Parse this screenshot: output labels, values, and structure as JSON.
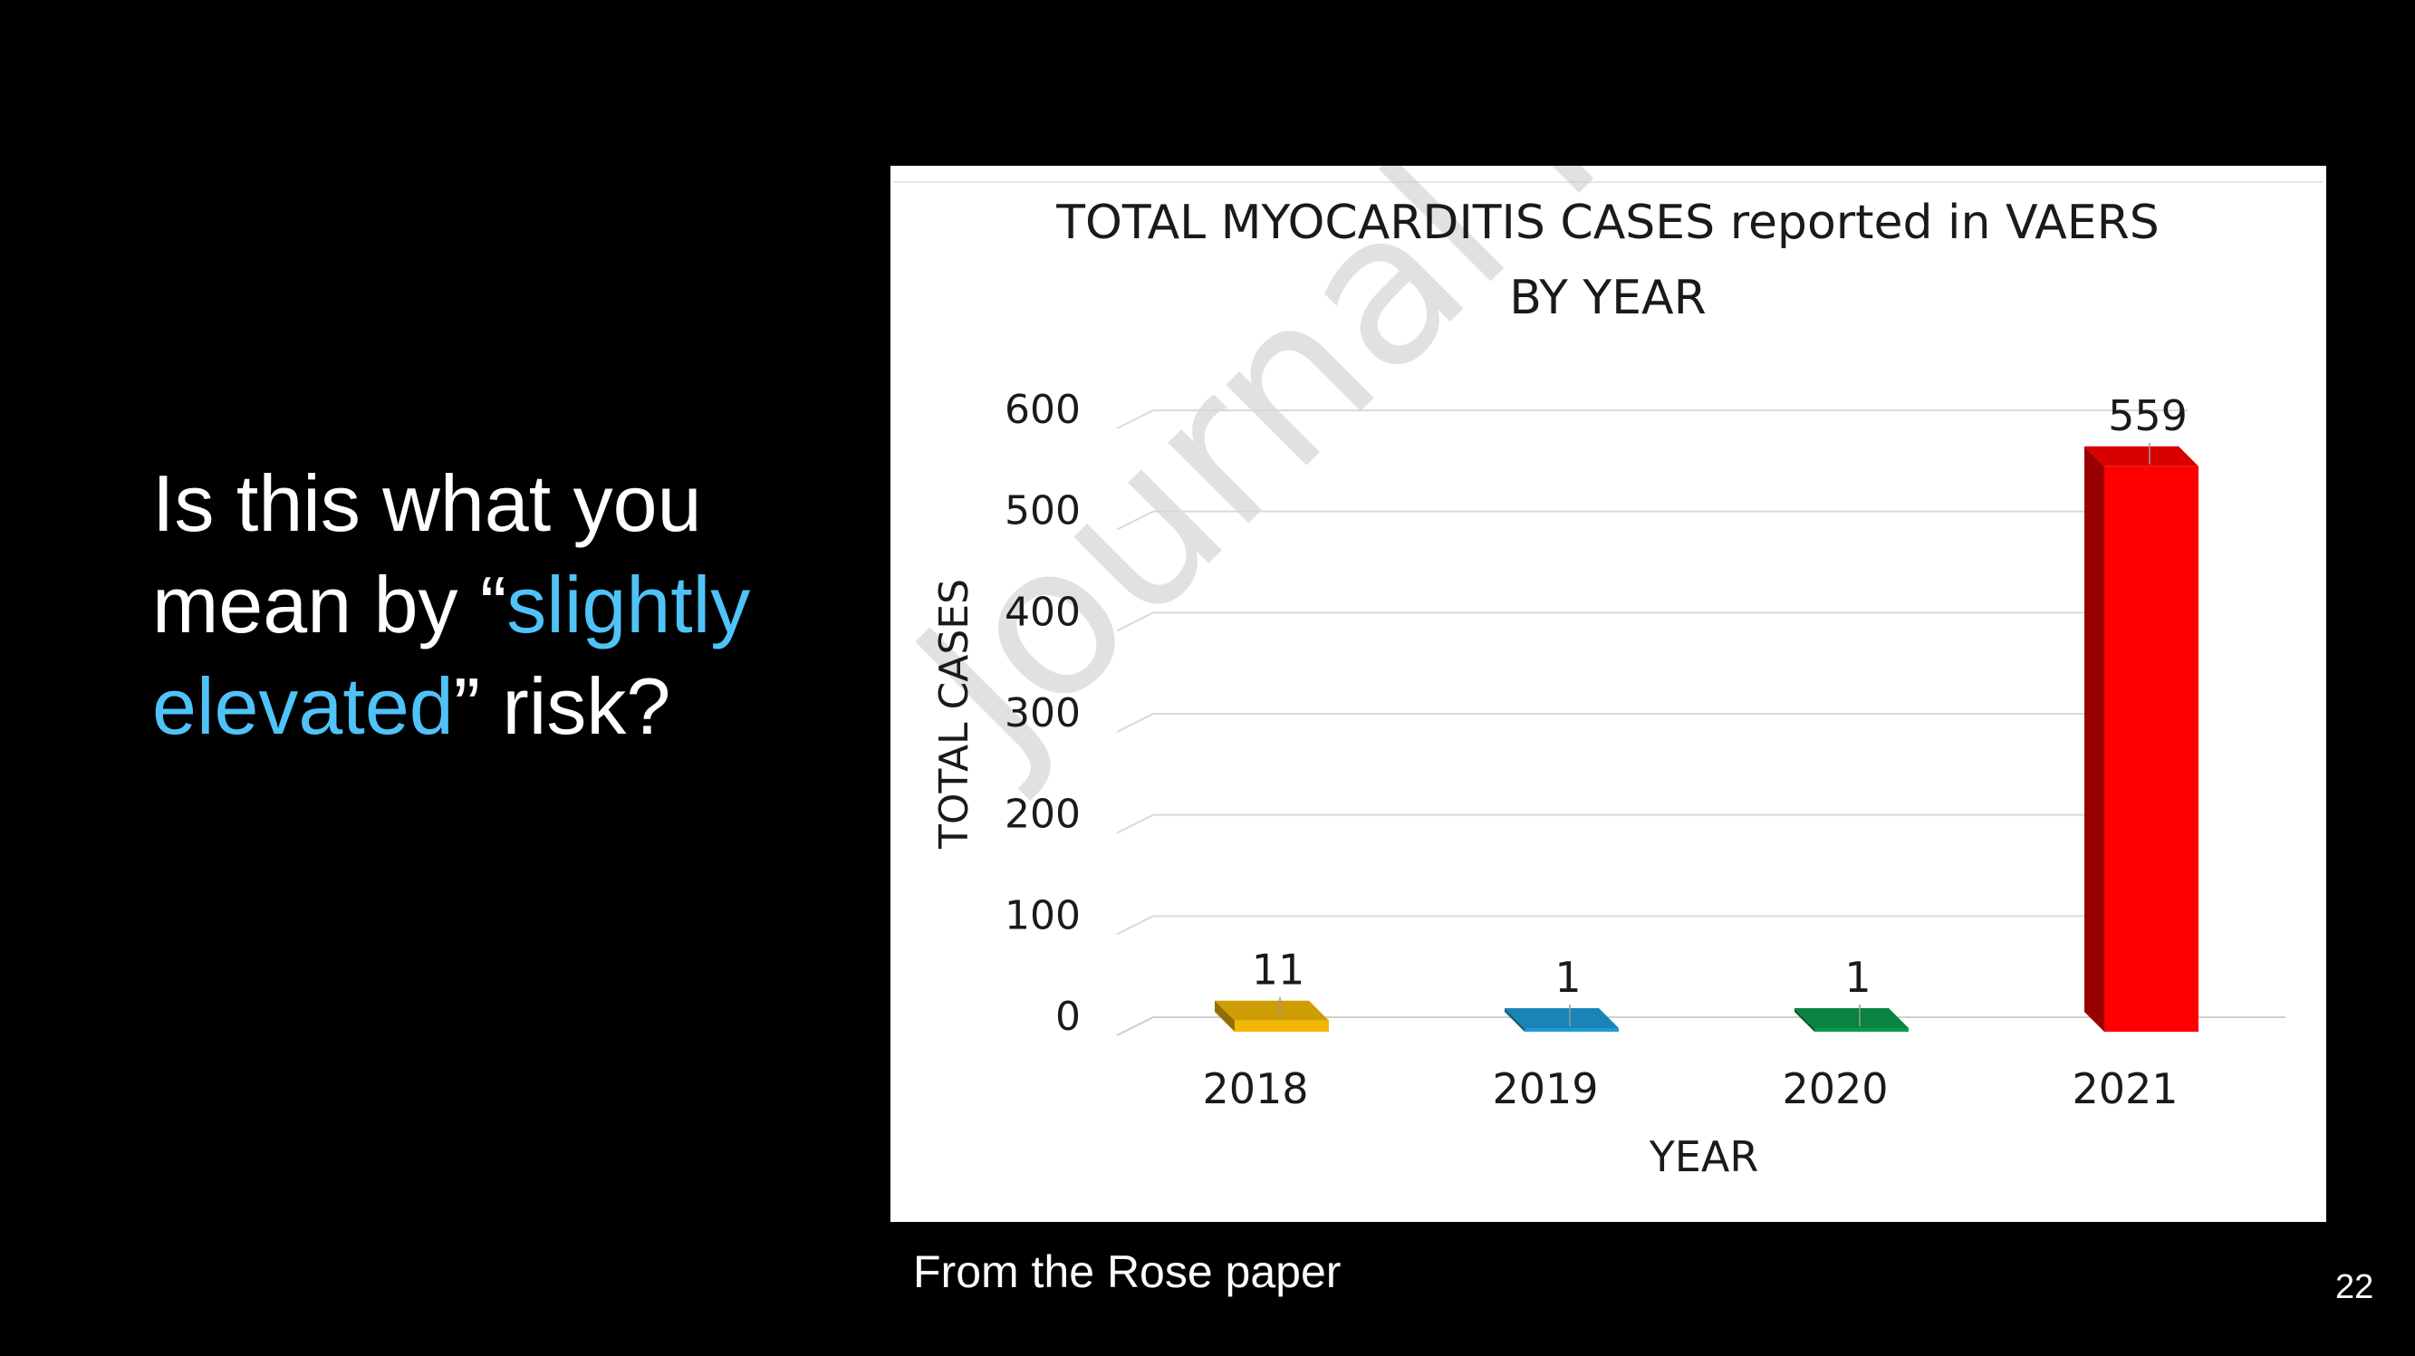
{
  "headline": {
    "part1": "Is this what you mean by “",
    "highlight": "slightly elevated",
    "part2": "” risk?"
  },
  "caption": "From the Rose paper",
  "page_number": "22",
  "watermark": "Journal P",
  "colors": {
    "background": "#000000",
    "headline": "#ffffff",
    "highlight": "#4fc3f7",
    "bar_2018": "#f2b705",
    "bar_2019": "#1e9bd7",
    "bar_2020": "#0b9a4a",
    "bar_2021": "#ff0000"
  },
  "chart_data": {
    "type": "bar",
    "title": "TOTAL MYOCARDITIS CASES reported in VAERS BY YEAR",
    "title_lines": [
      "TOTAL MYOCARDITIS CASES reported in VAERS",
      "BY YEAR"
    ],
    "xlabel": "YEAR",
    "ylabel": "TOTAL CASES",
    "categories": [
      "2018",
      "2019",
      "2020",
      "2021"
    ],
    "values": [
      11,
      1,
      1,
      559
    ],
    "data_labels": [
      "11",
      "1",
      "1",
      "559"
    ],
    "ylim": [
      0,
      600
    ],
    "yticks": [
      "0",
      "100",
      "200",
      "300",
      "400",
      "500",
      "600"
    ],
    "grid": true,
    "style": "3d",
    "legend": "none"
  }
}
